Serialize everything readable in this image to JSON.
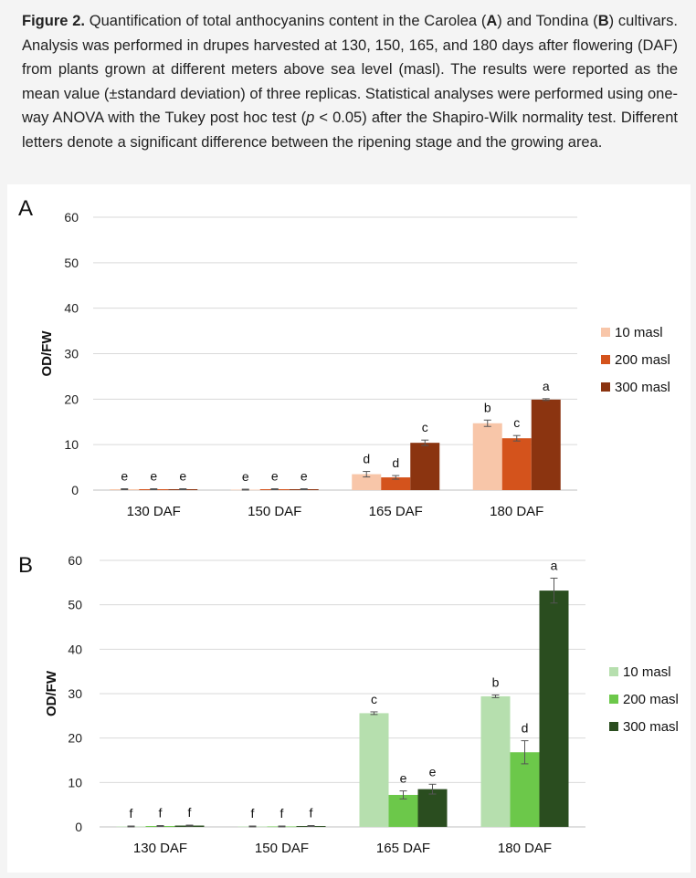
{
  "caption": {
    "fig_label": "Figure 2.",
    "t1": " Quantification of total anthocyanins content in the Carolea (",
    "bold_a": "A",
    "t2": ") and Tondina (",
    "bold_b": "B",
    "t3": ") cultivars. Analysis was performed in drupes harvested at 130, 150, 165, and 180 days after flowering (DAF) from plants grown at different meters above sea level (masl). The results were reported as the mean value (±standard deviation) of three replicas. Statistical analyses were performed using one-way ANOVA with the Tukey post hoc test (",
    "p": "p",
    "t4": " < 0.05) after the Shapiro-Wilk normality test. Different letters denote a significant difference between the ripening stage and the growing area."
  },
  "chart_data": [
    {
      "panel": "A",
      "type": "bar",
      "ylabel": "OD/FW",
      "ylim": [
        0,
        60
      ],
      "yticks": [
        0,
        10,
        20,
        30,
        40,
        50,
        60
      ],
      "grid": true,
      "legend_position": "right",
      "categories": [
        "130 DAF",
        "150 DAF",
        "165 DAF",
        "180 DAF"
      ],
      "series": [
        {
          "name": "10 masl",
          "color": "#f8c6a9",
          "values": [
            0.2,
            0.1,
            3.5,
            14.7
          ],
          "errors": [
            0.1,
            0.1,
            0.6,
            0.7
          ],
          "letters": [
            "e",
            "e",
            "d",
            "b"
          ]
        },
        {
          "name": "200 masl",
          "color": "#d4531c",
          "values": [
            0.2,
            0.2,
            2.8,
            11.4
          ],
          "errors": [
            0.1,
            0.1,
            0.4,
            0.6
          ],
          "letters": [
            "e",
            "e",
            "d",
            "c"
          ]
        },
        {
          "name": "300 masl",
          "color": "#8b3410",
          "values": [
            0.2,
            0.2,
            10.4,
            19.9
          ],
          "errors": [
            0.1,
            0.1,
            0.6,
            0.2
          ],
          "letters": [
            "e",
            "e",
            "c",
            "a"
          ]
        }
      ]
    },
    {
      "panel": "B",
      "type": "bar",
      "ylabel": "OD/FW",
      "ylim": [
        0,
        60
      ],
      "yticks": [
        0,
        10,
        20,
        30,
        40,
        50,
        60
      ],
      "grid": true,
      "legend_position": "right",
      "categories": [
        "130 DAF",
        "150 DAF",
        "165 DAF",
        "180 DAF"
      ],
      "series": [
        {
          "name": "10 masl",
          "color": "#b6dfae",
          "values": [
            0.1,
            0.1,
            25.6,
            29.4
          ],
          "errors": [
            0.1,
            0.1,
            0.3,
            0.3
          ],
          "letters": [
            "f",
            "f",
            "c",
            "b"
          ]
        },
        {
          "name": "200 masl",
          "color": "#6cc84a",
          "values": [
            0.2,
            0.1,
            7.2,
            16.8
          ],
          "errors": [
            0.1,
            0.1,
            0.9,
            2.6
          ],
          "letters": [
            "f",
            "f",
            "e",
            "d"
          ]
        },
        {
          "name": "300 masl",
          "color": "#2a4d1f",
          "values": [
            0.3,
            0.2,
            8.5,
            53.2
          ],
          "errors": [
            0.1,
            0.1,
            1.1,
            2.8
          ],
          "letters": [
            "f",
            "f",
            "e",
            "a"
          ]
        }
      ]
    }
  ]
}
